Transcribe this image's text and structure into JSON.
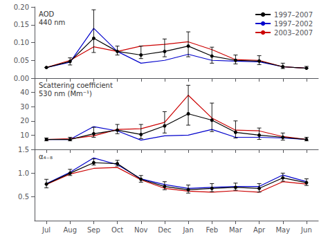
{
  "chart_data": [
    {
      "type": "line",
      "annotations": [
        "AOD\n440 nm"
      ],
      "categories": [
        "Jul",
        "Aug",
        "Sep",
        "Oct",
        "Nov",
        "Dec",
        "Jan",
        "Feb",
        "Mar",
        "Apr",
        "May",
        "Jun"
      ],
      "series": [
        {
          "name": "1997–2007",
          "color": "#000000",
          "marker": "circle",
          "values": [
            0.03,
            0.047,
            0.112,
            0.075,
            0.065,
            0.075,
            0.09,
            0.062,
            0.05,
            0.048,
            0.032,
            0.028
          ],
          "error_minus": [
            0.0,
            0.01,
            0.04,
            0.01,
            0.01,
            0.015,
            0.03,
            0.02,
            0.01,
            0.01,
            0.005,
            0.0
          ],
          "error_plus": [
            0.0,
            0.01,
            0.08,
            0.015,
            0.025,
            0.035,
            0.04,
            0.025,
            0.015,
            0.015,
            0.01,
            0.005
          ]
        },
        {
          "name": "1997–2002",
          "color": "#0000cc",
          "values": [
            0.03,
            0.045,
            0.14,
            0.075,
            0.042,
            0.05,
            0.067,
            0.05,
            0.048,
            0.046,
            0.032,
            0.028
          ]
        },
        {
          "name": "2003–2007",
          "color": "#cc0000",
          "values": [
            0.03,
            0.05,
            0.088,
            0.075,
            0.09,
            0.095,
            0.102,
            0.08,
            0.052,
            0.05,
            0.032,
            0.028
          ]
        }
      ],
      "ylim": [
        0.0,
        0.2
      ],
      "yticks": [
        {
          "value": 0.0,
          "label": "0.00"
        },
        0.05,
        {
          "value": 0.1,
          "label": "0.10"
        },
        0.15,
        {
          "value": 0.2,
          "label": "0.20"
        }
      ],
      "grid": false,
      "legend": "upper right",
      "tick_labels": "y"
    },
    {
      "type": "line",
      "annotations": [
        "Scattering coefficient\n530 nm (Mm⁻¹)"
      ],
      "categories": [
        "Jul",
        "Aug",
        "Sep",
        "Oct",
        "Nov",
        "Dec",
        "Jan",
        "Feb",
        "Mar",
        "Apr",
        "May",
        "Jun"
      ],
      "series": [
        {
          "name": "1997–2007",
          "color": "#000000",
          "marker": "circle",
          "values": [
            7.0,
            7.0,
            11.0,
            13.5,
            10.5,
            16.5,
            25.0,
            20.5,
            12.0,
            10.0,
            8.5,
            7.0
          ],
          "error_minus": [
            1.0,
            1.0,
            2.5,
            2.5,
            3.0,
            5.0,
            8.0,
            8.0,
            4.0,
            3.0,
            2.0,
            1.0
          ],
          "error_plus": [
            1.0,
            1.5,
            4.5,
            4.0,
            7.0,
            10.0,
            20.0,
            12.0,
            8.0,
            5.0,
            3.0,
            1.5
          ]
        },
        {
          "name": "1997–2002",
          "color": "#0000cc",
          "values": [
            7.0,
            7.0,
            16.0,
            13.0,
            6.5,
            9.5,
            10.0,
            14.0,
            8.5,
            8.5,
            8.0,
            7.0
          ]
        },
        {
          "name": "2003–2007",
          "color": "#cc0000",
          "values": [
            7.0,
            7.5,
            9.5,
            14.0,
            14.5,
            19.0,
            38.0,
            22.0,
            13.5,
            13.0,
            9.0,
            7.0
          ]
        }
      ],
      "ylim": [
        0,
        50
      ],
      "yticks": [
        10,
        20,
        30,
        40
      ],
      "grid": false,
      "tick_labels": "y"
    },
    {
      "type": "line",
      "annotations": [
        "α₄₋₈"
      ],
      "categories": [
        "Jul",
        "Aug",
        "Sep",
        "Oct",
        "Nov",
        "Dec",
        "Jan",
        "Feb",
        "Mar",
        "Apr",
        "May",
        "Jun"
      ],
      "series": [
        {
          "name": "1997–2007",
          "color": "#000000",
          "marker": "circle",
          "values": [
            0.77,
            1.0,
            1.22,
            1.2,
            0.87,
            0.72,
            0.65,
            0.68,
            0.7,
            0.68,
            0.9,
            0.8
          ],
          "error_minus": [
            0.08,
            0.05,
            0.05,
            0.05,
            0.06,
            0.07,
            0.07,
            0.07,
            0.06,
            0.08,
            0.07,
            0.06
          ],
          "error_plus": [
            0.1,
            0.08,
            0.08,
            0.07,
            0.08,
            0.1,
            0.1,
            0.1,
            0.09,
            0.1,
            0.1,
            0.08
          ]
        },
        {
          "name": "1997–2002",
          "color": "#0000cc",
          "values": [
            0.78,
            1.02,
            1.32,
            1.18,
            0.88,
            0.76,
            0.68,
            0.7,
            0.72,
            0.72,
            0.96,
            0.82
          ]
        },
        {
          "name": "2003–2007",
          "color": "#cc0000",
          "values": [
            0.76,
            0.98,
            1.1,
            1.12,
            0.86,
            0.68,
            0.62,
            0.6,
            0.63,
            0.6,
            0.82,
            0.77
          ]
        }
      ],
      "ylim": [
        0.0,
        1.5
      ],
      "yticks": [
        0.5,
        {
          "value": 1.0,
          "label": "1.0"
        },
        1.5
      ],
      "grid": false
    }
  ]
}
